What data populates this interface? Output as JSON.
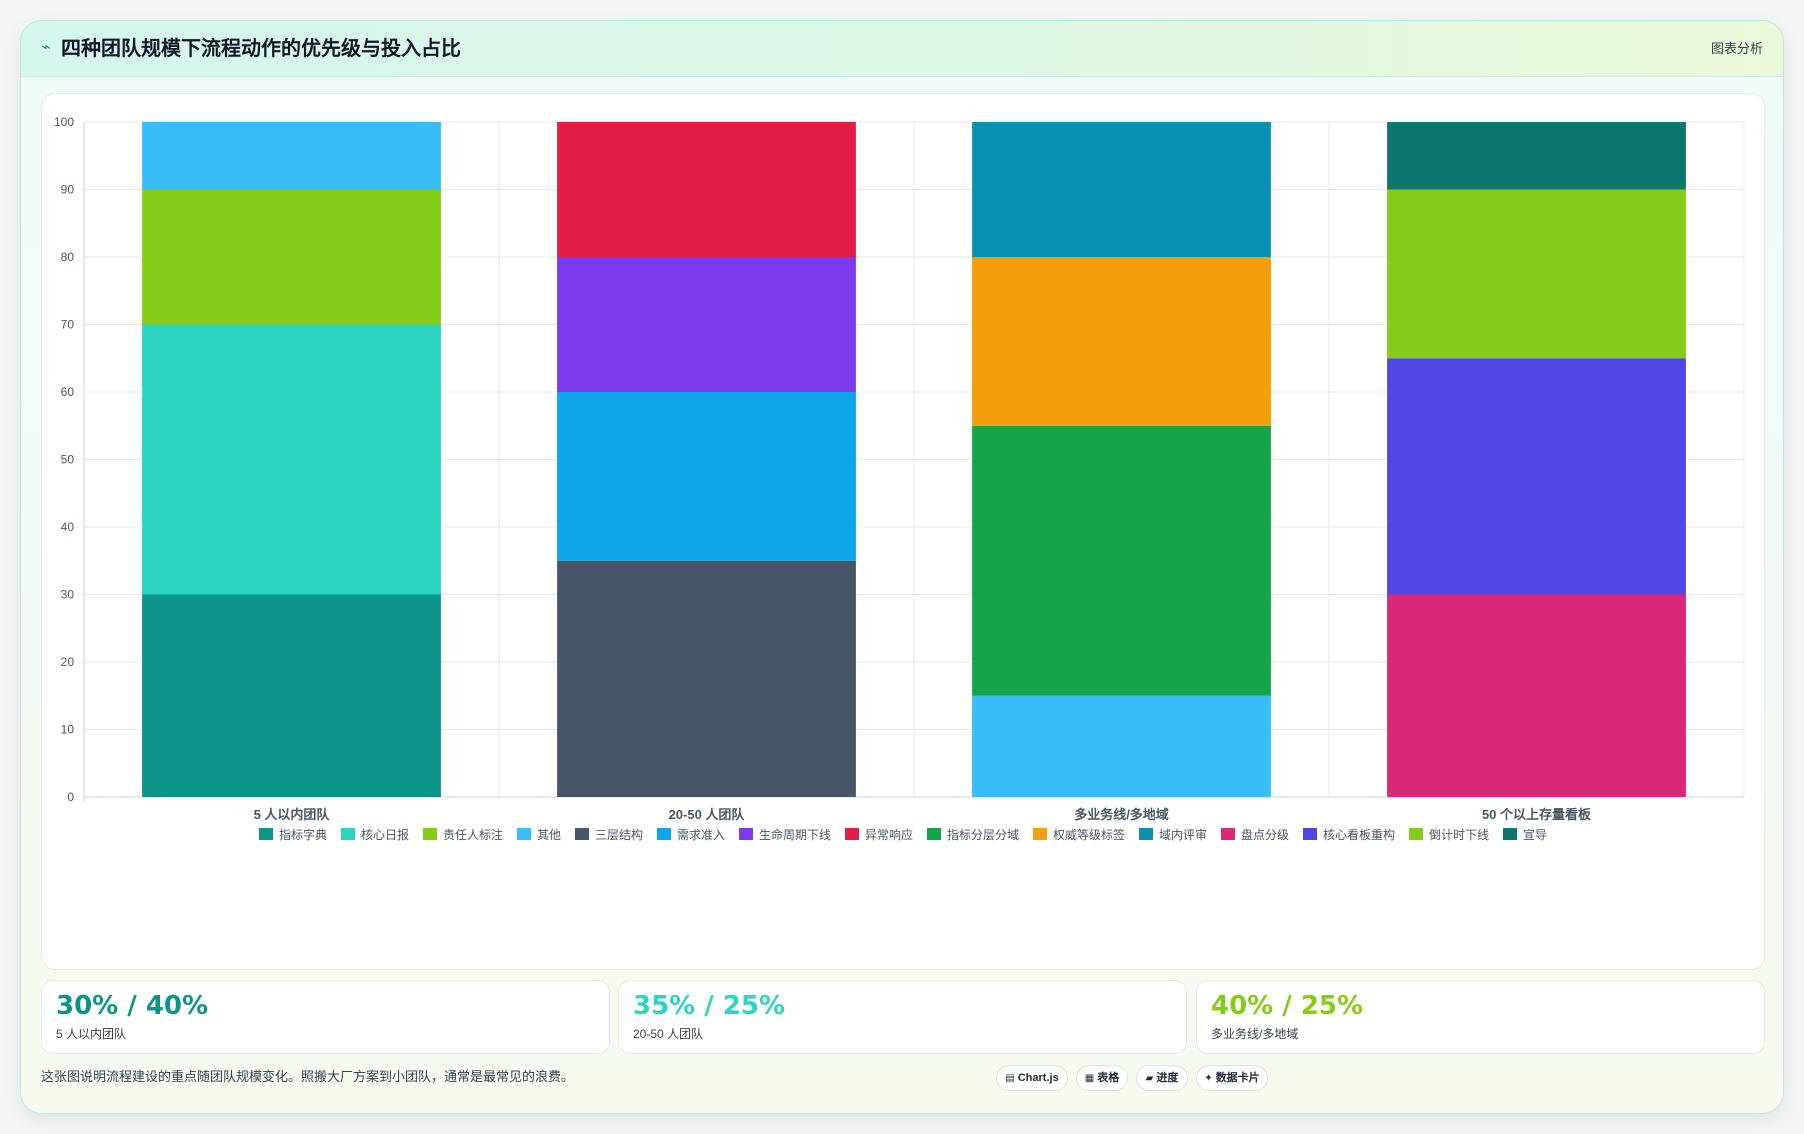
{
  "header": {
    "icon": "trend-line-icon",
    "icon_glyph": "⌁",
    "title": "四种团队规模下流程动作的优先级与投入占比",
    "tag": "图表分析"
  },
  "chart_data": {
    "type": "bar",
    "stacked": true,
    "categories": [
      "5 人以内团队",
      "20-50 人团队",
      "多业务线/多地域",
      "50 个以上存量看板"
    ],
    "ylim": [
      0,
      100
    ],
    "yticks": [
      "0",
      "10",
      "20",
      "30",
      "40",
      "50",
      "60",
      "70",
      "80",
      "90",
      "100"
    ],
    "grid": true,
    "legend_position": "bottom",
    "series": [
      {
        "name": "指标字典",
        "color": "#0d9488",
        "values": [
          30,
          0,
          0,
          0
        ]
      },
      {
        "name": "核心日报",
        "color": "#2dd4bf",
        "values": [
          40,
          0,
          0,
          0
        ]
      },
      {
        "name": "责任人标注",
        "color": "#84cc16",
        "values": [
          20,
          0,
          0,
          0
        ]
      },
      {
        "name": "其他",
        "color": "#38bdf8",
        "values": [
          10,
          0,
          0,
          0
        ]
      },
      {
        "name": "三层结构",
        "color": "#475569",
        "values": [
          0,
          35,
          0,
          0
        ]
      },
      {
        "name": "需求准入",
        "color": "#0ea5e9",
        "values": [
          0,
          25,
          0,
          0
        ]
      },
      {
        "name": "生命周期下线",
        "color": "#7c3aed",
        "values": [
          0,
          20,
          0,
          0
        ]
      },
      {
        "name": "异常响应",
        "color": "#e11d48",
        "values": [
          0,
          20,
          0,
          0
        ]
      },
      {
        "name": "其他",
        "color": "#38bdf8",
        "values": [
          0,
          0,
          15,
          0
        ],
        "in_legend": false
      },
      {
        "name": "指标分层分域",
        "color": "#16a34a",
        "values": [
          0,
          0,
          40,
          0
        ]
      },
      {
        "name": "权威等级标签",
        "color": "#f59e0b",
        "values": [
          0,
          0,
          25,
          0
        ]
      },
      {
        "name": "域内评审",
        "color": "#0891b2",
        "values": [
          0,
          0,
          20,
          0
        ]
      },
      {
        "name": "盘点分级",
        "color": "#db2777",
        "values": [
          0,
          0,
          0,
          30
        ]
      },
      {
        "name": "核心看板重构",
        "color": "#4f46e5",
        "values": [
          0,
          0,
          0,
          35
        ]
      },
      {
        "name": "倒计时下线",
        "color": "#84cc16",
        "values": [
          0,
          0,
          0,
          25
        ]
      },
      {
        "name": "宣导",
        "color": "#0f766e",
        "values": [
          0,
          0,
          0,
          10
        ]
      }
    ]
  },
  "stats": [
    {
      "value": "30% / 40%",
      "label": "5 人以内团队",
      "color": "#0d9488"
    },
    {
      "value": "35% / 25%",
      "label": "20-50 人团队",
      "color": "#2dd4bf"
    },
    {
      "value": "40% / 25%",
      "label": "多业务线/多地域",
      "color": "#84cc16"
    }
  ],
  "footer": {
    "note": "这张图说明流程建设的重点随团队规模变化。照搬大厂方案到小团队，通常是最常见的浪费。",
    "buttons": [
      {
        "icon": "chart-icon",
        "glyph": "▤",
        "label": "Chart.js"
      },
      {
        "icon": "table-icon",
        "glyph": "▦",
        "label": "表格"
      },
      {
        "icon": "progress-icon",
        "glyph": "▰",
        "label": "进度"
      },
      {
        "icon": "data-card-icon",
        "glyph": "✦",
        "label": "数据卡片"
      }
    ]
  }
}
